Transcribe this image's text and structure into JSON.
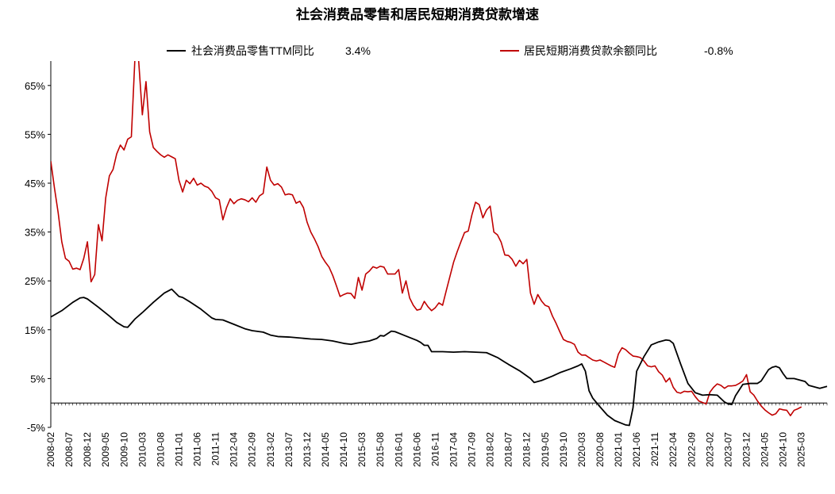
{
  "chart_data": {
    "type": "line",
    "title": "社会消费品零售和居民短期消费贷款增速",
    "xlabel": "",
    "ylabel": "",
    "ylim": [
      -5,
      70
    ],
    "y_ticks": [
      "-5%",
      "5%",
      "15%",
      "25%",
      "35%",
      "45%",
      "55%",
      "65%"
    ],
    "y_tick_values": [
      -5,
      5,
      15,
      25,
      35,
      45,
      55,
      65
    ],
    "x_tick_labels": [
      "2008-02",
      "2008-07",
      "2008-12",
      "2009-05",
      "2009-10",
      "2010-03",
      "2010-08",
      "2011-01",
      "2011-06",
      "2011-11",
      "2012-04",
      "2012-09",
      "2013-02",
      "2013-07",
      "2013-12",
      "2014-05",
      "2014-10",
      "2015-03",
      "2015-08",
      "2016-01",
      "2016-06",
      "2016-11",
      "2017-04",
      "2017-09",
      "2018-02",
      "2018-07",
      "2018-12",
      "2019-05",
      "2019-10",
      "2020-03",
      "2020-08",
      "2021-01",
      "2021-06",
      "2021-11",
      "2022-04",
      "2022-09",
      "2023-02",
      "2023-07",
      "2023-12",
      "2024-05",
      "2024-10",
      "2025-03"
    ],
    "legend_placement": "top",
    "grid": false,
    "series": [
      {
        "name": "社会消费品零售TTM同比",
        "latest_label": "3.4%",
        "color": "#000000",
        "points": [
          [
            0,
            17.6
          ],
          [
            3,
            18.9
          ],
          [
            6,
            20.6
          ],
          [
            8,
            21.5
          ],
          [
            9,
            21.6
          ],
          [
            10,
            21.3
          ],
          [
            13,
            19.6
          ],
          [
            16,
            17.8
          ],
          [
            18,
            16.5
          ],
          [
            20,
            15.6
          ],
          [
            21,
            15.5
          ],
          [
            23,
            17.2
          ],
          [
            25,
            18.5
          ],
          [
            28,
            20.6
          ],
          [
            31,
            22.5
          ],
          [
            33,
            23.3
          ],
          [
            35,
            21.8
          ],
          [
            36,
            21.6
          ],
          [
            38,
            20.7
          ],
          [
            41,
            19.2
          ],
          [
            44,
            17.4
          ],
          [
            45,
            17.1
          ],
          [
            47,
            17.0
          ],
          [
            50,
            16.1
          ],
          [
            53,
            15.2
          ],
          [
            55,
            14.8
          ],
          [
            58,
            14.5
          ],
          [
            60,
            13.9
          ],
          [
            62,
            13.6
          ],
          [
            65,
            13.5
          ],
          [
            68,
            13.3
          ],
          [
            71,
            13.1
          ],
          [
            74,
            13.0
          ],
          [
            77,
            12.7
          ],
          [
            80,
            12.2
          ],
          [
            82,
            12.0
          ],
          [
            84,
            12.3
          ],
          [
            87,
            12.7
          ],
          [
            89,
            13.2
          ],
          [
            90,
            13.8
          ],
          [
            91,
            13.7
          ],
          [
            93,
            14.7
          ],
          [
            94,
            14.6
          ],
          [
            97,
            13.7
          ],
          [
            100,
            12.8
          ],
          [
            101,
            12.4
          ],
          [
            102,
            11.8
          ],
          [
            103,
            11.8
          ],
          [
            104,
            10.5
          ],
          [
            107,
            10.5
          ],
          [
            110,
            10.4
          ],
          [
            113,
            10.5
          ],
          [
            116,
            10.4
          ],
          [
            119,
            10.3
          ],
          [
            122,
            9.3
          ],
          [
            125,
            7.9
          ],
          [
            128,
            6.6
          ],
          [
            131,
            5.0
          ],
          [
            132,
            4.2
          ],
          [
            134,
            4.6
          ],
          [
            137,
            5.5
          ],
          [
            139,
            6.2
          ],
          [
            142,
            7.0
          ],
          [
            144,
            7.6
          ],
          [
            145,
            8.0
          ],
          [
            146,
            6.5
          ],
          [
            147,
            2.5
          ],
          [
            148,
            1.0
          ],
          [
            150,
            -0.8
          ],
          [
            152,
            -2.5
          ],
          [
            154,
            -3.6
          ],
          [
            156,
            -4.2
          ],
          [
            157,
            -4.5
          ],
          [
            158,
            -4.6
          ],
          [
            159,
            -1.0
          ],
          [
            160,
            6.5
          ],
          [
            162,
            9.5
          ],
          [
            164,
            11.9
          ],
          [
            166,
            12.5
          ],
          [
            168,
            12.9
          ],
          [
            169,
            12.8
          ],
          [
            170,
            12.2
          ],
          [
            172,
            8.0
          ],
          [
            174,
            4.0
          ],
          [
            176,
            2.1
          ],
          [
            178,
            1.6
          ],
          [
            180,
            1.7
          ],
          [
            182,
            1.6
          ],
          [
            184,
            0.2
          ],
          [
            185,
            -0.2
          ],
          [
            186,
            -0.3
          ],
          [
            187,
            1.5
          ],
          [
            189,
            3.8
          ],
          [
            191,
            4.0
          ],
          [
            193,
            4.0
          ],
          [
            194,
            4.5
          ],
          [
            196,
            6.8
          ],
          [
            197,
            7.3
          ],
          [
            198,
            7.5
          ],
          [
            199,
            7.2
          ],
          [
            200,
            6.0
          ],
          [
            201,
            5.0
          ],
          [
            203,
            5.0
          ],
          [
            205,
            4.6
          ],
          [
            206,
            4.4
          ],
          [
            207,
            3.6
          ],
          [
            209,
            3.2
          ],
          [
            210,
            3.0
          ],
          [
            211,
            3.2
          ],
          [
            212,
            3.4
          ]
        ]
      },
      {
        "name": "居民短期消费贷款余额同比",
        "latest_label": "-0.8%",
        "color": "#c00000",
        "points": [
          [
            0,
            49.5
          ],
          [
            1,
            44.0
          ],
          [
            2,
            39.0
          ],
          [
            3,
            33.0
          ],
          [
            4,
            29.6
          ],
          [
            5,
            29.0
          ],
          [
            6,
            27.4
          ],
          [
            7,
            27.6
          ],
          [
            8,
            27.3
          ],
          [
            9,
            29.6
          ],
          [
            10,
            33.0
          ],
          [
            11,
            24.8
          ],
          [
            12,
            26.3
          ],
          [
            13,
            36.5
          ],
          [
            14,
            33.2
          ],
          [
            15,
            42.0
          ],
          [
            16,
            46.5
          ],
          [
            17,
            47.8
          ],
          [
            18,
            51.0
          ],
          [
            19,
            52.8
          ],
          [
            20,
            51.8
          ],
          [
            21,
            54.0
          ],
          [
            22,
            54.5
          ],
          [
            23,
            71.0
          ],
          [
            24,
            70.0
          ],
          [
            25,
            59.0
          ],
          [
            26,
            65.8
          ],
          [
            27,
            55.5
          ],
          [
            28,
            52.3
          ],
          [
            29,
            51.5
          ],
          [
            30,
            50.8
          ],
          [
            31,
            50.3
          ],
          [
            32,
            50.8
          ],
          [
            33,
            50.4
          ],
          [
            34,
            50.0
          ],
          [
            35,
            45.6
          ],
          [
            36,
            43.2
          ],
          [
            37,
            45.6
          ],
          [
            38,
            44.9
          ],
          [
            39,
            46.0
          ],
          [
            40,
            44.6
          ],
          [
            41,
            45.0
          ],
          [
            42,
            44.4
          ],
          [
            43,
            44.1
          ],
          [
            44,
            43.3
          ],
          [
            45,
            42.0
          ],
          [
            46,
            41.6
          ],
          [
            47,
            37.5
          ],
          [
            48,
            40.0
          ],
          [
            49,
            41.8
          ],
          [
            50,
            40.8
          ],
          [
            51,
            41.5
          ],
          [
            52,
            41.8
          ],
          [
            53,
            41.6
          ],
          [
            54,
            41.2
          ],
          [
            55,
            42.0
          ],
          [
            56,
            41.1
          ],
          [
            57,
            42.4
          ],
          [
            58,
            42.9
          ],
          [
            59,
            48.3
          ],
          [
            60,
            45.6
          ],
          [
            61,
            44.6
          ],
          [
            62,
            44.9
          ],
          [
            63,
            44.2
          ],
          [
            64,
            42.6
          ],
          [
            65,
            42.8
          ],
          [
            66,
            42.6
          ],
          [
            67,
            40.9
          ],
          [
            68,
            41.3
          ],
          [
            69,
            40.0
          ],
          [
            70,
            37.0
          ],
          [
            71,
            35.0
          ],
          [
            72,
            33.6
          ],
          [
            73,
            32.0
          ],
          [
            74,
            30.0
          ],
          [
            75,
            28.8
          ],
          [
            76,
            27.8
          ],
          [
            77,
            26.1
          ],
          [
            78,
            24.0
          ],
          [
            79,
            21.8
          ],
          [
            80,
            22.2
          ],
          [
            81,
            22.5
          ],
          [
            82,
            22.4
          ],
          [
            83,
            21.4
          ],
          [
            84,
            25.7
          ],
          [
            85,
            23.1
          ],
          [
            86,
            26.4
          ],
          [
            87,
            27.0
          ],
          [
            88,
            27.9
          ],
          [
            89,
            27.6
          ],
          [
            90,
            28.0
          ],
          [
            91,
            27.8
          ],
          [
            92,
            26.4
          ],
          [
            93,
            26.4
          ],
          [
            94,
            26.4
          ],
          [
            95,
            27.3
          ],
          [
            96,
            22.5
          ],
          [
            97,
            25.0
          ],
          [
            98,
            21.5
          ],
          [
            99,
            20.0
          ],
          [
            100,
            19.0
          ],
          [
            101,
            19.2
          ],
          [
            102,
            20.8
          ],
          [
            103,
            19.7
          ],
          [
            104,
            18.9
          ],
          [
            105,
            19.5
          ],
          [
            106,
            20.5
          ],
          [
            107,
            20.0
          ],
          [
            108,
            23.0
          ],
          [
            109,
            25.9
          ],
          [
            110,
            28.8
          ],
          [
            111,
            31.0
          ],
          [
            112,
            33.0
          ],
          [
            113,
            34.9
          ],
          [
            114,
            35.2
          ],
          [
            115,
            38.5
          ],
          [
            116,
            41.1
          ],
          [
            117,
            40.6
          ],
          [
            118,
            37.9
          ],
          [
            119,
            39.5
          ],
          [
            120,
            40.3
          ],
          [
            121,
            35.0
          ],
          [
            122,
            34.4
          ],
          [
            123,
            32.9
          ],
          [
            124,
            30.3
          ],
          [
            125,
            30.2
          ],
          [
            126,
            29.4
          ],
          [
            127,
            28.0
          ],
          [
            128,
            29.2
          ],
          [
            129,
            28.5
          ],
          [
            130,
            29.4
          ],
          [
            131,
            22.5
          ],
          [
            132,
            20.2
          ],
          [
            133,
            22.2
          ],
          [
            134,
            20.9
          ],
          [
            135,
            20.0
          ],
          [
            136,
            19.7
          ],
          [
            137,
            17.8
          ],
          [
            138,
            16.3
          ],
          [
            139,
            14.6
          ],
          [
            140,
            13.0
          ],
          [
            141,
            12.6
          ],
          [
            142,
            12.4
          ],
          [
            143,
            12.0
          ],
          [
            144,
            10.4
          ],
          [
            145,
            9.8
          ],
          [
            146,
            9.8
          ],
          [
            147,
            9.3
          ],
          [
            148,
            8.8
          ],
          [
            149,
            8.6
          ],
          [
            150,
            8.8
          ],
          [
            151,
            8.4
          ],
          [
            152,
            8.0
          ],
          [
            153,
            7.6
          ],
          [
            154,
            7.3
          ],
          [
            155,
            10.0
          ],
          [
            156,
            11.3
          ],
          [
            157,
            10.9
          ],
          [
            158,
            10.2
          ],
          [
            159,
            9.6
          ],
          [
            160,
            9.5
          ],
          [
            161,
            9.3
          ],
          [
            162,
            8.6
          ],
          [
            163,
            7.6
          ],
          [
            164,
            7.4
          ],
          [
            165,
            7.6
          ],
          [
            166,
            6.4
          ],
          [
            167,
            5.7
          ],
          [
            168,
            4.3
          ],
          [
            169,
            5.1
          ],
          [
            170,
            3.2
          ],
          [
            171,
            2.2
          ],
          [
            172,
            2.0
          ],
          [
            173,
            2.4
          ],
          [
            174,
            2.3
          ],
          [
            175,
            2.4
          ],
          [
            176,
            1.3
          ],
          [
            177,
            0.4
          ],
          [
            178,
            0.1
          ],
          [
            179,
            -0.2
          ],
          [
            180,
            2.2
          ],
          [
            181,
            3.2
          ],
          [
            182,
            3.9
          ],
          [
            183,
            3.6
          ],
          [
            184,
            3.0
          ],
          [
            185,
            3.5
          ],
          [
            186,
            3.5
          ],
          [
            187,
            3.6
          ],
          [
            188,
            4.0
          ],
          [
            189,
            4.5
          ],
          [
            190,
            5.8
          ],
          [
            191,
            2.3
          ],
          [
            192,
            1.6
          ],
          [
            193,
            0.4
          ],
          [
            194,
            -0.6
          ],
          [
            195,
            -1.4
          ],
          [
            196,
            -2.0
          ],
          [
            197,
            -2.5
          ],
          [
            198,
            -2.2
          ],
          [
            199,
            -1.2
          ],
          [
            200,
            -1.4
          ],
          [
            201,
            -1.5
          ],
          [
            202,
            -2.6
          ],
          [
            203,
            -1.5
          ],
          [
            204,
            -1.2
          ],
          [
            205,
            -0.8
          ]
        ]
      }
    ]
  }
}
